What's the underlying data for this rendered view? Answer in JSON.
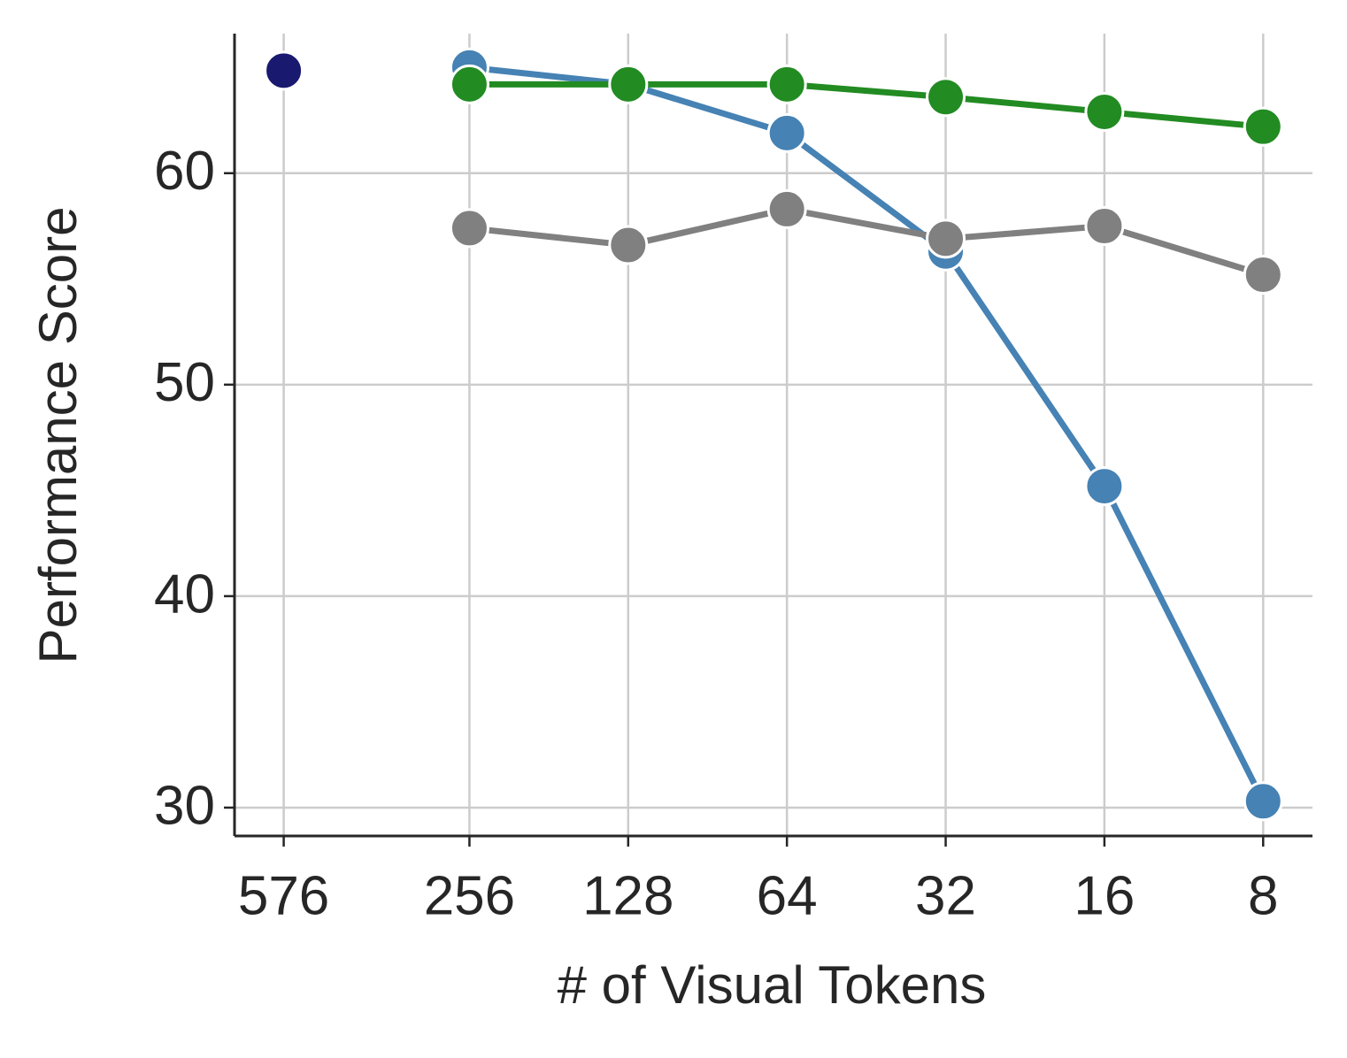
{
  "chart_data": {
    "type": "line",
    "xlabel": "# of Visual Tokens",
    "ylabel": "Performance Score",
    "x": [
      576,
      256,
      128,
      64,
      32,
      16,
      8
    ],
    "x_log": true,
    "xlim": [
      714,
      6.45
    ],
    "xticks": [
      576,
      256,
      128,
      64,
      32,
      16,
      8
    ],
    "ylim": [
      28.66,
      66.6
    ],
    "yticks": [
      30,
      40,
      50,
      60
    ],
    "grid": true,
    "series": [
      {
        "color": "#4682b4",
        "values": [
          null,
          65.0,
          64.2,
          61.9,
          56.3,
          45.2,
          30.3
        ]
      },
      {
        "color": "#228b22",
        "values": [
          null,
          64.2,
          64.2,
          64.2,
          63.6,
          62.9,
          62.2
        ]
      },
      {
        "color": "#808080",
        "values": [
          null,
          57.4,
          56.6,
          58.3,
          56.9,
          57.5,
          55.2
        ]
      },
      {
        "color": "#191970",
        "values": [
          64.85,
          null,
          null,
          null,
          null,
          null,
          null
        ]
      }
    ]
  }
}
